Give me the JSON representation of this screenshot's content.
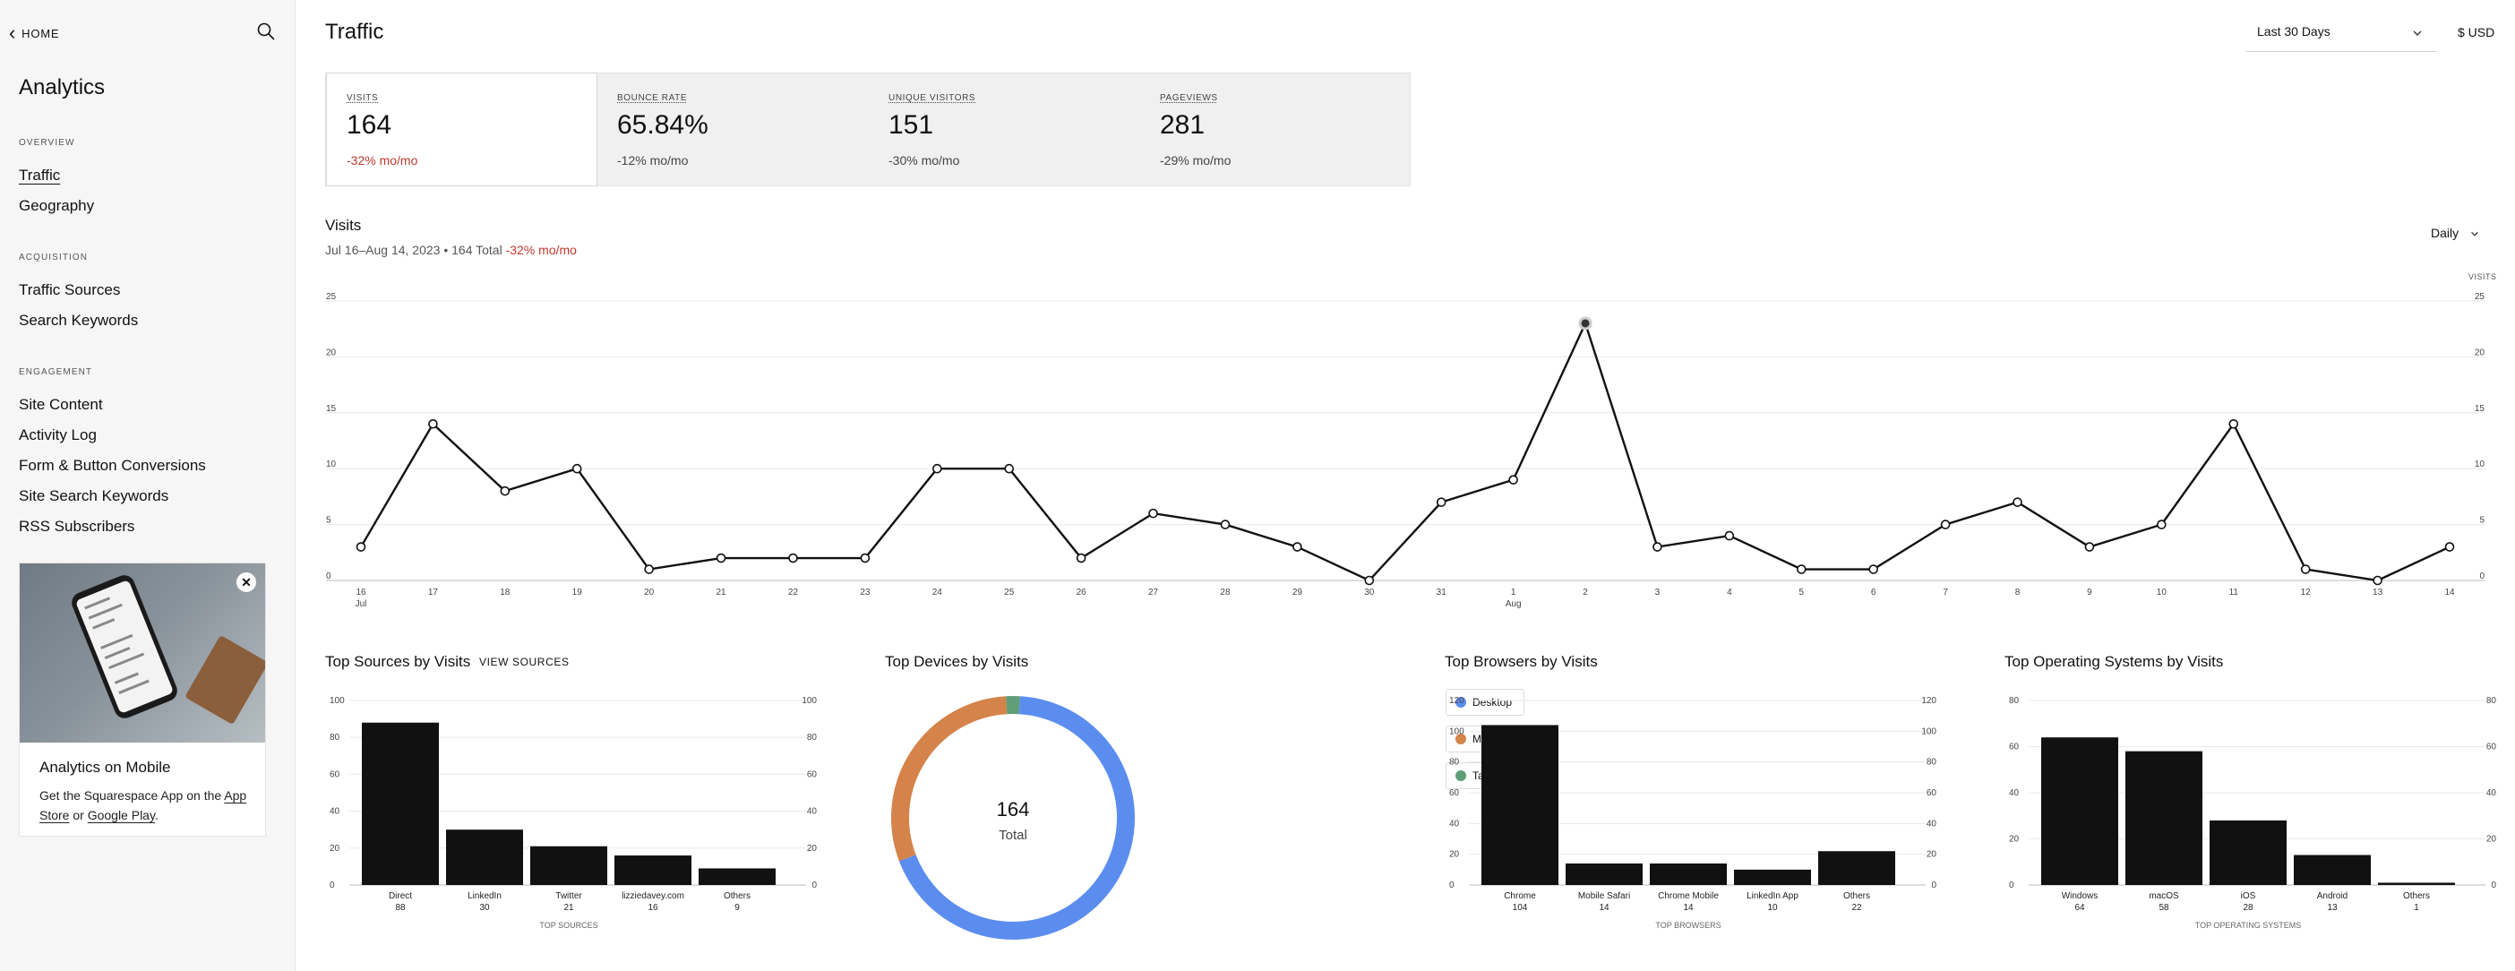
{
  "sidebar": {
    "home_label": "HOME",
    "title": "Analytics",
    "sections": [
      {
        "heading": "OVERVIEW",
        "items": [
          "Traffic",
          "Geography"
        ]
      },
      {
        "heading": "ACQUISITION",
        "items": [
          "Traffic Sources",
          "Search Keywords"
        ]
      },
      {
        "heading": "ENGAGEMENT",
        "items": [
          "Site Content",
          "Activity Log",
          "Form & Button Conversions",
          "Site Search Keywords",
          "RSS Subscribers"
        ]
      }
    ],
    "active_item": "Traffic",
    "promo": {
      "title": "Analytics on Mobile",
      "text_before": "Get the Squarespace App on the",
      "link_app_store": "App Store",
      "text_or": "or",
      "link_google_play": "Google Play",
      "text_end": "."
    }
  },
  "header": {
    "title": "Traffic",
    "date_range": "Last 30 Days",
    "currency": "$ USD"
  },
  "metrics": [
    {
      "label": "VISITS",
      "value": "164",
      "change": "-32% mo/mo",
      "active": true
    },
    {
      "label": "BOUNCE RATE",
      "value": "65.84%",
      "change": "-12% mo/mo",
      "active": false
    },
    {
      "label": "UNIQUE VISITORS",
      "value": "151",
      "change": "-30% mo/mo",
      "active": false
    },
    {
      "label": "PAGEVIEWS",
      "value": "281",
      "change": "-29% mo/mo",
      "active": false
    }
  ],
  "visits_panel": {
    "title": "Visits",
    "range_text": "Jul 16–Aug 14, 2023 • 164 Total",
    "change_text": "-32% mo/mo",
    "granularity": "Daily",
    "right_axis_label": "VISITS"
  },
  "colors": {
    "negative": "#c0392b",
    "bar": "#111111",
    "desktop": "#5b8def",
    "mobile": "#d4834a",
    "tablet": "#5f9e77"
  },
  "chart_data": [
    {
      "type": "line",
      "title": "Visits",
      "x": [
        "16",
        "17",
        "18",
        "19",
        "20",
        "21",
        "22",
        "23",
        "24",
        "25",
        "26",
        "27",
        "28",
        "29",
        "30",
        "31",
        "1",
        "2",
        "3",
        "4",
        "5",
        "6",
        "7",
        "8",
        "9",
        "10",
        "11",
        "12",
        "13",
        "14"
      ],
      "month_labels": [
        {
          "at": "16",
          "text": "Jul"
        },
        {
          "at": "1",
          "text": "Aug"
        }
      ],
      "values": [
        3,
        14,
        8,
        10,
        1,
        2,
        2,
        2,
        10,
        10,
        2,
        6,
        5,
        3,
        0,
        7,
        9,
        23,
        3,
        4,
        1,
        1,
        5,
        7,
        3,
        5,
        14,
        1,
        0,
        3
      ],
      "ylim": [
        0,
        25
      ],
      "yticks": [
        0,
        5,
        10,
        15,
        20,
        25
      ],
      "highlight_index": 17,
      "ylabel": "VISITS",
      "grid": true
    },
    {
      "type": "bar",
      "title": "Top Sources by Visits",
      "link": "VIEW SOURCES",
      "categories": [
        "Direct",
        "LinkedIn",
        "Twitter",
        "lizziedavey.com",
        "Others"
      ],
      "values": [
        88,
        30,
        21,
        16,
        9
      ],
      "ylim": [
        0,
        100
      ],
      "yticks": [
        0,
        20,
        40,
        60,
        80,
        100
      ],
      "xlabel": "TOP SOURCES"
    },
    {
      "type": "pie",
      "title": "Top Devices by Visits",
      "categories": [
        "Desktop",
        "Mobile",
        "Tablet"
      ],
      "values": [
        112,
        49,
        3
      ],
      "center_value": "164",
      "center_label": "Total"
    },
    {
      "type": "bar",
      "title": "Top Browsers by Visits",
      "categories": [
        "Chrome",
        "Mobile Safari",
        "Chrome Mobile",
        "LinkedIn App",
        "Others"
      ],
      "values": [
        104,
        14,
        14,
        10,
        22
      ],
      "ylim": [
        0,
        120
      ],
      "yticks": [
        0,
        20,
        40,
        60,
        80,
        100,
        120
      ],
      "xlabel": "TOP BROWSERS"
    },
    {
      "type": "bar",
      "title": "Top Operating Systems by Visits",
      "categories": [
        "Windows",
        "macOS",
        "iOS",
        "Android",
        "Others"
      ],
      "values": [
        64,
        58,
        28,
        13,
        1
      ],
      "ylim": [
        0,
        80
      ],
      "yticks": [
        0,
        20,
        40,
        60,
        80
      ],
      "xlabel": "TOP OPERATING SYSTEMS"
    }
  ]
}
